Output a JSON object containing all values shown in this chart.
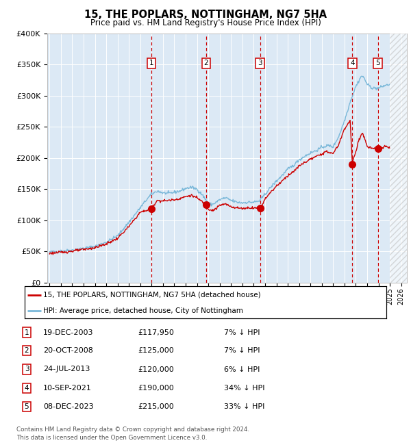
{
  "title": "15, THE POPLARS, NOTTINGHAM, NG7 5HA",
  "subtitle": "Price paid vs. HM Land Registry's House Price Index (HPI)",
  "ylim": [
    0,
    400000
  ],
  "yticks": [
    0,
    50000,
    100000,
    150000,
    200000,
    250000,
    300000,
    350000,
    400000
  ],
  "ytick_labels": [
    "£0",
    "£50K",
    "£100K",
    "£150K",
    "£200K",
    "£250K",
    "£300K",
    "£350K",
    "£400K"
  ],
  "background_color": "#ffffff",
  "plot_bg_color": "#dce9f5",
  "hpi_line_color": "#7ab8d9",
  "price_line_color": "#cc0000",
  "marker_color": "#cc0000",
  "vline_color": "#cc0000",
  "grid_color": "#ffffff",
  "purchases": [
    {
      "num": 1,
      "date_yr": 2003.964,
      "price": 117950,
      "label": "19-DEC-2003",
      "price_str": "£117,950",
      "pct": "7% ↓ HPI"
    },
    {
      "num": 2,
      "date_yr": 2008.803,
      "price": 125000,
      "label": "20-OCT-2008",
      "price_str": "£125,000",
      "pct": "7% ↓ HPI"
    },
    {
      "num": 3,
      "date_yr": 2013.558,
      "price": 120000,
      "label": "24-JUL-2013",
      "price_str": "£120,000",
      "pct": "6% ↓ HPI"
    },
    {
      "num": 4,
      "date_yr": 2021.692,
      "price": 190000,
      "label": "10-SEP-2021",
      "price_str": "£190,000",
      "pct": "34% ↓ HPI"
    },
    {
      "num": 5,
      "date_yr": 2023.934,
      "price": 215000,
      "label": "08-DEC-2023",
      "price_str": "£215,000",
      "pct": "33% ↓ HPI"
    }
  ],
  "legend_line1": "15, THE POPLARS, NOTTINGHAM, NG7 5HA (detached house)",
  "legend_line2": "HPI: Average price, detached house, City of Nottingham",
  "footer_line1": "Contains HM Land Registry data © Crown copyright and database right 2024.",
  "footer_line2": "This data is licensed under the Open Government Licence v3.0.",
  "hatch_start_year": 2025.0,
  "xlim_start": 1994.8,
  "xlim_end": 2026.5
}
